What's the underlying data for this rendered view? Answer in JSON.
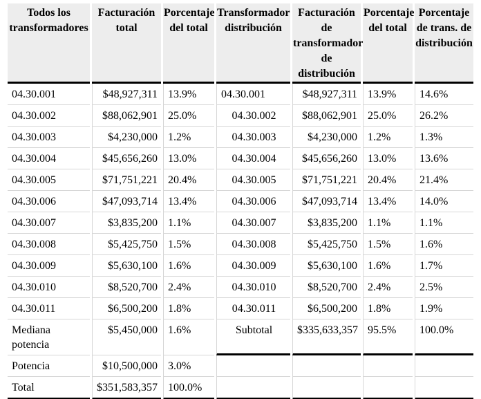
{
  "colors": {
    "background": "#ffffff",
    "header_bg": "#ededed",
    "border_dark": "#000000",
    "border_light": "#d6d6d6",
    "text": "#000000"
  },
  "table": {
    "headers": [
      "Todos los transformadores",
      "Facturación total",
      "Porcentaje del total",
      "Transformador distribución",
      "Facturación de transformador de distribución",
      "Porcentaje del total",
      "Porcentaje de trans. de distribución"
    ],
    "column_aligns": [
      "left",
      "right",
      "left",
      "center",
      "right",
      "left",
      "left"
    ],
    "subtotal_label": "Subtotal",
    "rows": [
      [
        "04.30.001",
        "$48,927,311",
        "13.9%",
        "04.30.001",
        "$48,927,311",
        "13.9%",
        "14.6%"
      ],
      [
        "04.30.002",
        "$88,062,901",
        "25.0%",
        "04.30.002",
        "$88,062,901",
        "25.0%",
        "26.2%"
      ],
      [
        "04.30.003",
        "$4,230,000",
        "1.2%",
        "04.30.003",
        "$4,230,000",
        "1.2%",
        "1.3%"
      ],
      [
        "04.30.004",
        "$45,656,260",
        "13.0%",
        "04.30.004",
        "$45,656,260",
        "13.0%",
        "13.6%"
      ],
      [
        "04.30.005",
        "$71,751,221",
        "20.4%",
        "04.30.005",
        "$71,751,221",
        "20.4%",
        "21.4%"
      ],
      [
        "04.30.006",
        "$47,093,714",
        "13.4%",
        "04.30.006",
        "$47,093,714",
        "13.4%",
        "14.0%"
      ],
      [
        "04.30.007",
        "$3,835,200",
        "1.1%",
        "04.30.007",
        "$3,835,200",
        "1.1%",
        "1.1%"
      ],
      [
        "04.30.008",
        "$5,425,750",
        "1.5%",
        "04.30.008",
        "$5,425,750",
        "1.5%",
        "1.6%"
      ],
      [
        "04.30.009",
        "$5,630,100",
        "1.6%",
        "04.30.009",
        "$5,630,100",
        "1.6%",
        "1.7%"
      ],
      [
        "04.30.010",
        "$8,520,700",
        "2.4%",
        "04.30.010",
        "$8,520,700",
        "2.4%",
        "2.5%"
      ],
      [
        "04.30.011",
        "$6,500,200",
        "1.8%",
        "04.30.011",
        "$6,500,200",
        "1.8%",
        "1.9%"
      ],
      [
        "Mediana potencia",
        "$5,450,000",
        "1.6%",
        "Subtotal",
        "$335,633,357",
        "95.5%",
        "100.0%"
      ],
      [
        "Potencia",
        "$10,500,000",
        "3.0%",
        "",
        "",
        "",
        ""
      ],
      [
        "Total",
        "$351,583,357",
        "100.0%",
        "",
        "",
        "",
        ""
      ]
    ]
  }
}
